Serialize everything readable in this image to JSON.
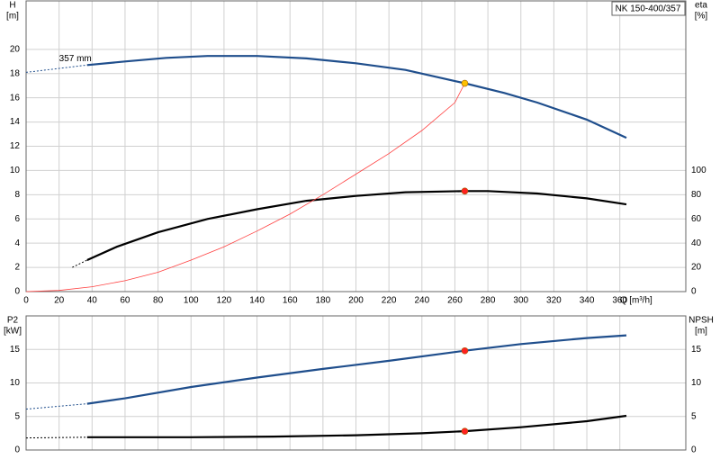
{
  "chart_data": [
    {
      "type": "line",
      "title": "NK 150-400/357",
      "annotation": "357 mm",
      "y_label": "H",
      "y_unit": "[m]",
      "y2_label": "eta",
      "y2_unit": "[%]",
      "x_label": "Q [m³/h]",
      "xlim": [
        0,
        400
      ],
      "xticks": [
        0,
        20,
        40,
        60,
        80,
        100,
        120,
        140,
        160,
        180,
        200,
        220,
        240,
        260,
        280,
        300,
        320,
        340,
        360
      ],
      "ylim": [
        0,
        24
      ],
      "yticks": [
        0,
        2,
        4,
        6,
        8,
        10,
        12,
        14,
        16,
        18,
        20
      ],
      "y2lim": [
        0,
        240
      ],
      "y2ticks": [
        0,
        20,
        40,
        60,
        80,
        100
      ],
      "grid": true,
      "series": [
        {
          "color": "#1f4e8c",
          "dashed": true,
          "x": [
            0,
            37
          ],
          "values": [
            18.1,
            18.7
          ]
        },
        {
          "color": "#1f4e8c",
          "x": [
            37,
            60,
            85,
            110,
            140,
            170,
            200,
            230,
            266,
            290,
            310,
            340,
            364
          ],
          "values": [
            18.7,
            19.0,
            19.3,
            19.45,
            19.45,
            19.25,
            18.85,
            18.3,
            17.2,
            16.4,
            15.6,
            14.2,
            12.7
          ]
        },
        {
          "color": "#000000",
          "dashed": true,
          "axis": "y2",
          "x": [
            28,
            37
          ],
          "values": [
            20,
            26
          ]
        },
        {
          "color": "#000000",
          "axis": "y2",
          "x": [
            37,
            55,
            80,
            110,
            140,
            170,
            200,
            230,
            266,
            280,
            310,
            340,
            364
          ],
          "values": [
            26,
            37,
            49,
            60,
            68,
            75,
            79,
            82,
            83,
            83,
            81,
            77,
            72
          ]
        },
        {
          "color": "#ff4040",
          "thin": true,
          "x": [
            0,
            20,
            40,
            60,
            80,
            100,
            120,
            140,
            160,
            180,
            200,
            220,
            240,
            260,
            266
          ],
          "values": [
            0,
            0.1,
            0.4,
            0.9,
            1.6,
            2.6,
            3.7,
            5.0,
            6.4,
            8.0,
            9.7,
            11.4,
            13.3,
            15.6,
            17.2
          ]
        }
      ],
      "points": [
        {
          "x": 266,
          "y": 17.2,
          "color": "#ffc000"
        },
        {
          "x": 266,
          "y": 83,
          "color": "#ff2020",
          "axis": "y2"
        }
      ]
    },
    {
      "type": "line",
      "y_label": "P2",
      "y_unit": "[kW]",
      "y2_label": "NPSH",
      "y2_unit": "[m]",
      "xlim": [
        0,
        400
      ],
      "xticks": [
        0,
        20,
        40,
        60,
        80,
        100,
        120,
        140,
        160,
        180,
        200,
        220,
        240,
        260,
        280,
        300,
        320,
        340,
        360
      ],
      "xtick_labels": false,
      "ylim": [
        0,
        20
      ],
      "yticks": [
        0,
        5,
        10,
        15
      ],
      "y2lim": [
        0,
        20
      ],
      "y2ticks": [
        0,
        5,
        10,
        15
      ],
      "grid": true,
      "series": [
        {
          "color": "#1f4e8c",
          "dashed": true,
          "x": [
            0,
            37
          ],
          "values": [
            6.1,
            6.9
          ]
        },
        {
          "color": "#1f4e8c",
          "x": [
            37,
            60,
            100,
            140,
            180,
            220,
            266,
            300,
            340,
            364
          ],
          "values": [
            6.9,
            7.7,
            9.4,
            10.8,
            12.1,
            13.3,
            14.8,
            15.8,
            16.7,
            17.1
          ]
        },
        {
          "color": "#000000",
          "dashed": true,
          "axis": "y2",
          "x": [
            0,
            37
          ],
          "values": [
            1.8,
            1.9
          ]
        },
        {
          "color": "#000000",
          "axis": "y2",
          "x": [
            37,
            100,
            150,
            200,
            240,
            266,
            300,
            340,
            364
          ],
          "values": [
            1.9,
            1.9,
            2.0,
            2.2,
            2.5,
            2.8,
            3.4,
            4.3,
            5.1
          ]
        }
      ],
      "points": [
        {
          "x": 266,
          "y": 14.8,
          "color": "#ff2020"
        },
        {
          "x": 266,
          "y": 2.8,
          "color": "#ff2020",
          "axis": "y2"
        }
      ]
    }
  ]
}
